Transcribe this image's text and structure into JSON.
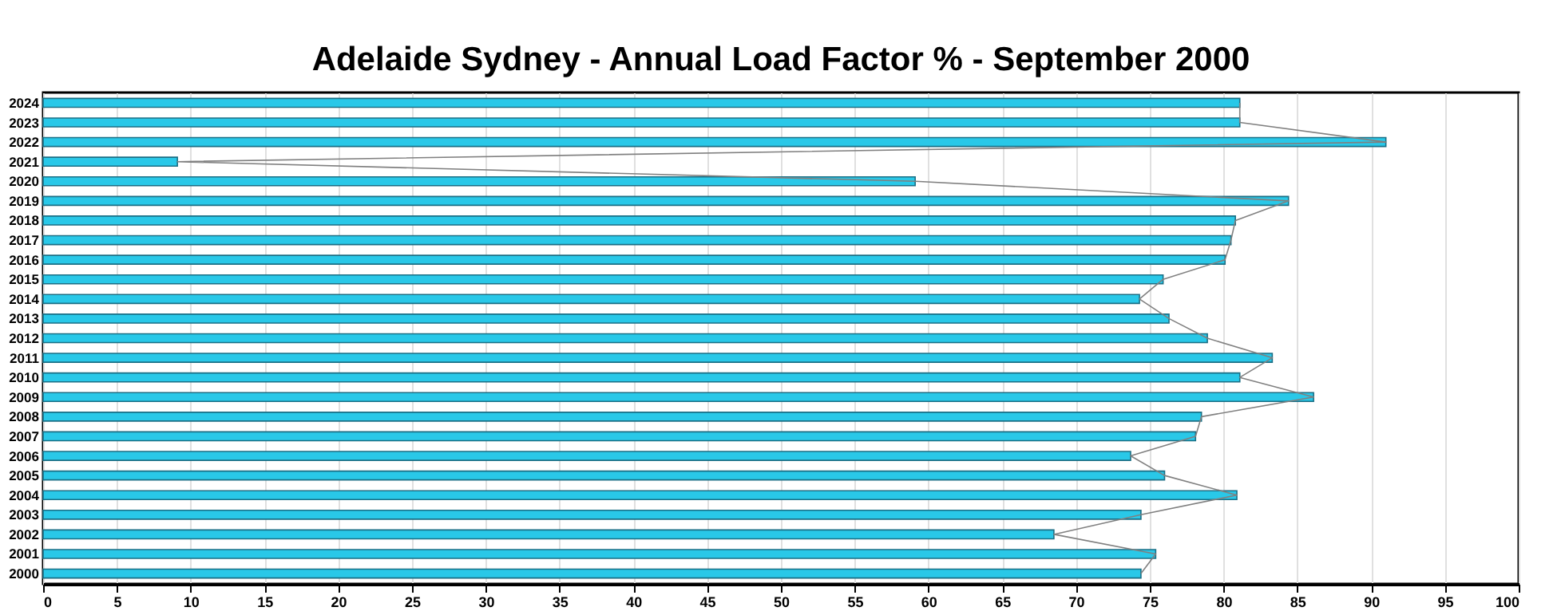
{
  "chart_data": {
    "type": "bar",
    "orientation": "horizontal",
    "title": "Adelaide Sydney - Annual Load Factor % - September 2000",
    "categories": [
      "2024",
      "2023",
      "2022",
      "2021",
      "2020",
      "2019",
      "2018",
      "2017",
      "2016",
      "2015",
      "2014",
      "2013",
      "2012",
      "2011",
      "2010",
      "2009",
      "2008",
      "2007",
      "2006",
      "2005",
      "2004",
      "2003",
      "2002",
      "2001",
      "2000"
    ],
    "values": [
      81.1,
      81.1,
      91.0,
      9.1,
      59.1,
      84.4,
      80.8,
      80.5,
      80.1,
      75.9,
      74.3,
      76.3,
      78.9,
      83.3,
      81.1,
      86.1,
      78.5,
      78.1,
      73.7,
      76.0,
      80.9,
      74.4,
      68.5,
      75.4,
      74.4
    ],
    "color": "#29c8e8",
    "xlim": [
      0,
      100
    ],
    "xticks": [
      0,
      5,
      10,
      15,
      20,
      25,
      30,
      35,
      40,
      45,
      50,
      55,
      60,
      65,
      70,
      75,
      80,
      85,
      90,
      95,
      100
    ],
    "grid": "x"
  }
}
